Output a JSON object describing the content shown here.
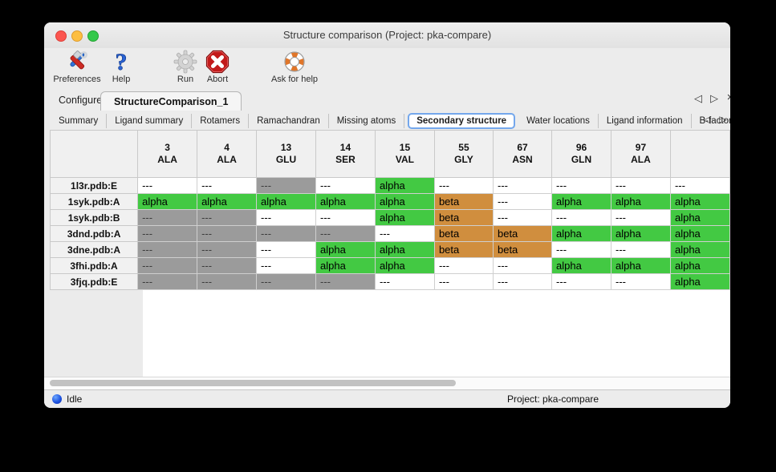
{
  "window": {
    "title": "Structure comparison (Project: pka-compare)"
  },
  "toolbar": {
    "items": [
      {
        "label": "Preferences",
        "icon": "tools-icon"
      },
      {
        "label": "Help",
        "icon": "question-icon"
      },
      {
        "label": "Run",
        "icon": "gear-icon",
        "disabled": true
      },
      {
        "label": "Abort",
        "icon": "stop-icon"
      },
      {
        "label": "Ask for help",
        "icon": "lifebuoy-icon"
      }
    ]
  },
  "tabs": {
    "items": [
      {
        "label": "Configure",
        "selected": false
      },
      {
        "label": "StructureComparison_1",
        "selected": true
      }
    ],
    "nav": {
      "prev": "◁",
      "next": "▷",
      "close": "×"
    }
  },
  "subtabs": {
    "items": [
      "Summary",
      "Ligand summary",
      "Rotamers",
      "Ramachandran",
      "Missing atoms",
      "Secondary structure",
      "Water locations",
      "Ligand information",
      "B-factors"
    ],
    "selected": "Secondary structure",
    "nav": {
      "prev": "◁",
      "next": "▷"
    }
  },
  "table": {
    "columns": [
      {
        "num": "3",
        "res": "ALA"
      },
      {
        "num": "4",
        "res": "ALA"
      },
      {
        "num": "13",
        "res": "GLU"
      },
      {
        "num": "14",
        "res": "SER"
      },
      {
        "num": "15",
        "res": "VAL"
      },
      {
        "num": "55",
        "res": "GLY"
      },
      {
        "num": "67",
        "res": "ASN"
      },
      {
        "num": "96",
        "res": "GLN"
      },
      {
        "num": "97",
        "res": "ALA"
      },
      {
        "num": "",
        "res": ""
      }
    ],
    "rows": [
      {
        "name": "1l3r.pdb:E",
        "cells": [
          {
            "v": "---",
            "bg": "none"
          },
          {
            "v": "---",
            "bg": "none"
          },
          {
            "v": "---",
            "bg": "na"
          },
          {
            "v": "---",
            "bg": "none"
          },
          {
            "v": "alpha",
            "bg": "alpha"
          },
          {
            "v": "---",
            "bg": "none"
          },
          {
            "v": "---",
            "bg": "none"
          },
          {
            "v": "---",
            "bg": "none"
          },
          {
            "v": "---",
            "bg": "none"
          },
          {
            "v": "---",
            "bg": "none"
          }
        ]
      },
      {
        "name": "1syk.pdb:A",
        "cells": [
          {
            "v": "alpha",
            "bg": "alpha"
          },
          {
            "v": "alpha",
            "bg": "alpha"
          },
          {
            "v": "alpha",
            "bg": "alpha"
          },
          {
            "v": "alpha",
            "bg": "alpha"
          },
          {
            "v": "alpha",
            "bg": "alpha"
          },
          {
            "v": "beta",
            "bg": "beta"
          },
          {
            "v": "---",
            "bg": "none"
          },
          {
            "v": "alpha",
            "bg": "alpha"
          },
          {
            "v": "alpha",
            "bg": "alpha"
          },
          {
            "v": "alpha",
            "bg": "alpha"
          }
        ]
      },
      {
        "name": "1syk.pdb:B",
        "cells": [
          {
            "v": "---",
            "bg": "na"
          },
          {
            "v": "---",
            "bg": "na"
          },
          {
            "v": "---",
            "bg": "none"
          },
          {
            "v": "---",
            "bg": "none"
          },
          {
            "v": "alpha",
            "bg": "alpha"
          },
          {
            "v": "beta",
            "bg": "beta"
          },
          {
            "v": "---",
            "bg": "none"
          },
          {
            "v": "---",
            "bg": "none"
          },
          {
            "v": "---",
            "bg": "none"
          },
          {
            "v": "alpha",
            "bg": "alpha"
          }
        ]
      },
      {
        "name": "3dnd.pdb:A",
        "cells": [
          {
            "v": "---",
            "bg": "na"
          },
          {
            "v": "---",
            "bg": "na"
          },
          {
            "v": "---",
            "bg": "na"
          },
          {
            "v": "---",
            "bg": "na"
          },
          {
            "v": "---",
            "bg": "none"
          },
          {
            "v": "beta",
            "bg": "beta"
          },
          {
            "v": "beta",
            "bg": "beta"
          },
          {
            "v": "alpha",
            "bg": "alpha"
          },
          {
            "v": "alpha",
            "bg": "alpha"
          },
          {
            "v": "alpha",
            "bg": "alpha"
          }
        ]
      },
      {
        "name": "3dne.pdb:A",
        "cells": [
          {
            "v": "---",
            "bg": "na"
          },
          {
            "v": "---",
            "bg": "na"
          },
          {
            "v": "---",
            "bg": "none"
          },
          {
            "v": "alpha",
            "bg": "alpha"
          },
          {
            "v": "alpha",
            "bg": "alpha"
          },
          {
            "v": "beta",
            "bg": "beta"
          },
          {
            "v": "beta",
            "bg": "beta"
          },
          {
            "v": "---",
            "bg": "none"
          },
          {
            "v": "---",
            "bg": "none"
          },
          {
            "v": "alpha",
            "bg": "alpha"
          }
        ]
      },
      {
        "name": "3fhi.pdb:A",
        "cells": [
          {
            "v": "---",
            "bg": "na"
          },
          {
            "v": "---",
            "bg": "na"
          },
          {
            "v": "---",
            "bg": "none"
          },
          {
            "v": "alpha",
            "bg": "alpha"
          },
          {
            "v": "alpha",
            "bg": "alpha"
          },
          {
            "v": "---",
            "bg": "none"
          },
          {
            "v": "---",
            "bg": "none"
          },
          {
            "v": "alpha",
            "bg": "alpha"
          },
          {
            "v": "alpha",
            "bg": "alpha"
          },
          {
            "v": "alpha",
            "bg": "alpha"
          }
        ]
      },
      {
        "name": "3fjq.pdb:E",
        "cells": [
          {
            "v": "---",
            "bg": "na"
          },
          {
            "v": "---",
            "bg": "na"
          },
          {
            "v": "---",
            "bg": "na"
          },
          {
            "v": "---",
            "bg": "na"
          },
          {
            "v": "---",
            "bg": "none"
          },
          {
            "v": "---",
            "bg": "none"
          },
          {
            "v": "---",
            "bg": "none"
          },
          {
            "v": "---",
            "bg": "none"
          },
          {
            "v": "---",
            "bg": "none"
          },
          {
            "v": "alpha",
            "bg": "alpha"
          }
        ]
      }
    ]
  },
  "colors": {
    "alpha": "#43c943",
    "beta": "#d08e3e",
    "na": "#9b9b9b",
    "none": "#ffffff",
    "na_text": "#3d3d3d",
    "focus_ring": "#74a7ec"
  },
  "statusbar": {
    "status": "Idle",
    "project": "Project: pka-compare"
  }
}
